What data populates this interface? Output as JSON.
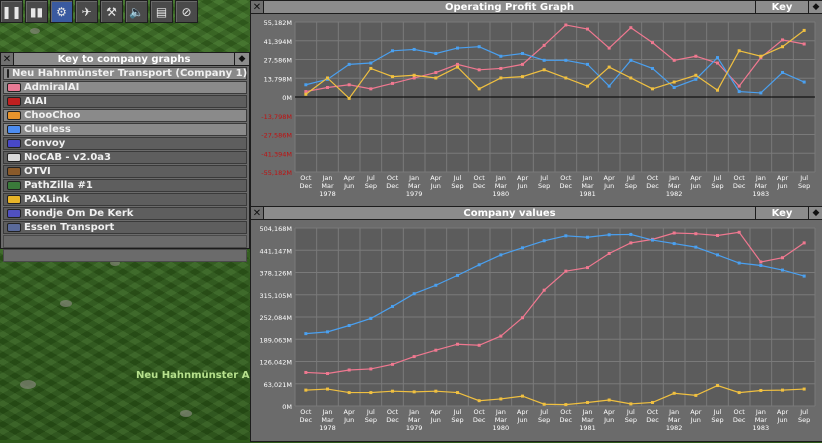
{
  "toolbar": {
    "buttons": [
      {
        "icon": "pause-icon",
        "symbol": "❚❚"
      },
      {
        "icon": "fast-forward-icon",
        "symbol": "▮▮"
      },
      {
        "icon": "options-icon",
        "symbol": "⚙"
      },
      {
        "icon": "aircraft-icon",
        "symbol": "✈"
      },
      {
        "icon": "terraform-icon",
        "symbol": "⚒"
      },
      {
        "icon": "sound-icon",
        "symbol": "🔈"
      },
      {
        "icon": "newspaper-icon",
        "symbol": "▤"
      },
      {
        "icon": "stop-icon",
        "symbol": "⊘"
      }
    ]
  },
  "key_window": {
    "title": "Key to company graphs",
    "companies": [
      {
        "name": "Neu Hahnmünster Transport (Company 1)",
        "color": "#6ca844",
        "active": true
      },
      {
        "name": "AdmiralAI",
        "color": "#e87a94",
        "active": true
      },
      {
        "name": "AIAI",
        "color": "#c02020",
        "active": false
      },
      {
        "name": "ChooChoo",
        "color": "#e8942c",
        "active": true
      },
      {
        "name": "Clueless",
        "color": "#4c8cf0",
        "active": true
      },
      {
        "name": "Convoy",
        "color": "#4848c8",
        "active": false
      },
      {
        "name": "NoCAB - v2.0a3",
        "color": "#d8d8d8",
        "active": false
      },
      {
        "name": "OTVI",
        "color": "#8a5a2a",
        "active": false
      },
      {
        "name": "PathZilla #1",
        "color": "#3a7a3a",
        "active": false
      },
      {
        "name": "PAXLink",
        "color": "#e8b428",
        "active": false
      },
      {
        "name": "Rondje Om De Kerk",
        "color": "#5050c0",
        "active": false
      },
      {
        "name": "Essen Transport",
        "color": "#5a6a9a",
        "active": false
      }
    ]
  },
  "map": {
    "town_label": "Neu Hahnmünster Airp"
  },
  "colors": {
    "admiral": "#f07890",
    "clueless": "#4aa0f0",
    "choochoo": "#f0c040",
    "zero_line": "#000000",
    "neg_label": "#c01010"
  },
  "charts": {
    "profit": {
      "title": "Operating Profit Graph",
      "key_label": "Key",
      "y_labels": [
        "55,182M",
        "41,394M",
        "27,586M",
        "13,798M",
        "0M",
        "-13,798M",
        "-27,586M",
        "-41,394M",
        "-55,182M"
      ]
    },
    "value": {
      "title": "Company values",
      "key_label": "Key",
      "y_labels": [
        "504,168M",
        "441,147M",
        "378,126M",
        "315,105M",
        "252,084M",
        "189,063M",
        "126,042M",
        "63,021M",
        "0M"
      ]
    },
    "x_labels": [
      [
        "Oct",
        "Dec",
        ""
      ],
      [
        "Jan",
        "Mar",
        "1978"
      ],
      [
        "Apr",
        "Jun",
        ""
      ],
      [
        "Jul",
        "Sep",
        ""
      ],
      [
        "Oct",
        "Dec",
        ""
      ],
      [
        "Jan",
        "Mar",
        "1979"
      ],
      [
        "Apr",
        "Jun",
        ""
      ],
      [
        "Jul",
        "Sep",
        ""
      ],
      [
        "Oct",
        "Dec",
        ""
      ],
      [
        "Jan",
        "Mar",
        "1980"
      ],
      [
        "Apr",
        "Jun",
        ""
      ],
      [
        "Jul",
        "Sep",
        ""
      ],
      [
        "Oct",
        "Dec",
        ""
      ],
      [
        "Jan",
        "Mar",
        "1981"
      ],
      [
        "Apr",
        "Jun",
        ""
      ],
      [
        "Jul",
        "Sep",
        ""
      ],
      [
        "Oct",
        "Dec",
        ""
      ],
      [
        "Jan",
        "Mar",
        "1982"
      ],
      [
        "Apr",
        "Jun",
        ""
      ],
      [
        "Jul",
        "Sep",
        ""
      ],
      [
        "Oct",
        "Dec",
        ""
      ],
      [
        "Jan",
        "Mar",
        "1983"
      ],
      [
        "Apr",
        "Jun",
        ""
      ],
      [
        "Jul",
        "Sep",
        ""
      ]
    ]
  },
  "chart_data": [
    {
      "type": "line",
      "title": "Operating Profit Graph",
      "ylim": [
        -55182,
        55182
      ],
      "y_unit": "M",
      "x": [
        "Oct-Dec 1977",
        "Jan-Mar 1978",
        "Apr-Jun 1978",
        "Jul-Sep 1978",
        "Oct-Dec 1978",
        "Jan-Mar 1979",
        "Apr-Jun 1979",
        "Jul-Sep 1979",
        "Oct-Dec 1979",
        "Jan-Mar 1980",
        "Apr-Jun 1980",
        "Jul-Sep 1980",
        "Oct-Dec 1980",
        "Jan-Mar 1981",
        "Apr-Jun 1981",
        "Jul-Sep 1981",
        "Oct-Dec 1981",
        "Jan-Mar 1982",
        "Apr-Jun 1982",
        "Jul-Sep 1982",
        "Oct-Dec 1982",
        "Jan-Mar 1983",
        "Apr-Jun 1983",
        "Jul-Sep 1983"
      ],
      "series": [
        {
          "name": "AdmiralAI",
          "color_key": "admiral",
          "values": [
            4000,
            7000,
            9000,
            6000,
            10000,
            14000,
            18000,
            24000,
            20000,
            21000,
            24000,
            38000,
            53000,
            50000,
            36000,
            51000,
            40000,
            27000,
            30000,
            25000,
            8000,
            29000,
            42000,
            39000
          ]
        },
        {
          "name": "Clueless",
          "color_key": "clueless",
          "values": [
            9000,
            13000,
            24000,
            25000,
            34000,
            35000,
            32000,
            36000,
            37000,
            30000,
            32000,
            27000,
            27000,
            24000,
            8000,
            27000,
            21000,
            7000,
            13000,
            29000,
            4000,
            3000,
            18000,
            11000
          ]
        },
        {
          "name": "ChooChoo",
          "color_key": "choochoo",
          "values": [
            2000,
            14000,
            -1000,
            21000,
            15000,
            16000,
            14000,
            22000,
            6000,
            14000,
            15000,
            20000,
            14000,
            8000,
            22000,
            14000,
            6000,
            11000,
            16000,
            5000,
            34000,
            30000,
            37000,
            49000
          ]
        }
      ]
    },
    {
      "type": "line",
      "title": "Company values",
      "ylim": [
        0,
        504168
      ],
      "y_unit": "M",
      "x": [
        "Oct-Dec 1977",
        "Jan-Mar 1978",
        "Apr-Jun 1978",
        "Jul-Sep 1978",
        "Oct-Dec 1978",
        "Jan-Mar 1979",
        "Apr-Jun 1979",
        "Jul-Sep 1979",
        "Oct-Dec 1979",
        "Jan-Mar 1980",
        "Apr-Jun 1980",
        "Jul-Sep 1980",
        "Oct-Dec 1980",
        "Jan-Mar 1981",
        "Apr-Jun 1981",
        "Jul-Sep 1981",
        "Oct-Dec 1981",
        "Jan-Mar 1982",
        "Apr-Jun 1982",
        "Jul-Sep 1982",
        "Oct-Dec 1982",
        "Jan-Mar 1983",
        "Apr-Jun 1983",
        "Jul-Sep 1983"
      ],
      "series": [
        {
          "name": "AdmiralAI",
          "color_key": "admiral",
          "values": [
            95000,
            92000,
            102000,
            105000,
            118000,
            140000,
            158000,
            175000,
            172000,
            198000,
            250000,
            328000,
            382000,
            392000,
            432000,
            462000,
            472000,
            490000,
            488000,
            483000,
            492000,
            408000,
            420000,
            462000
          ]
        },
        {
          "name": "Clueless",
          "color_key": "clueless",
          "values": [
            205000,
            210000,
            228000,
            248000,
            282000,
            318000,
            342000,
            370000,
            400000,
            428000,
            448000,
            468000,
            482000,
            478000,
            485000,
            486000,
            470000,
            460000,
            450000,
            428000,
            405000,
            398000,
            385000,
            368000
          ]
        },
        {
          "name": "ChooChoo",
          "color_key": "choochoo",
          "values": [
            45000,
            48000,
            38000,
            38000,
            42000,
            40000,
            42000,
            38000,
            15000,
            20000,
            28000,
            5000,
            4000,
            10000,
            17000,
            6000,
            10000,
            36000,
            30000,
            58000,
            38000,
            44000,
            45000,
            48000
          ]
        }
      ]
    }
  ]
}
